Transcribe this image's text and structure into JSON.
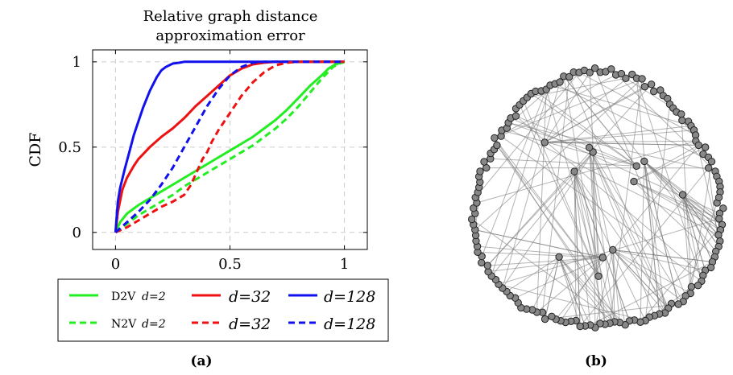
{
  "chart_data": [
    {
      "type": "line",
      "title": "Relative graph distance approximation error",
      "title_lines": [
        "Relative graph distance",
        "approximation error"
      ],
      "xlabel": "",
      "ylabel": "CDF",
      "xlim": [
        -0.1,
        1.1
      ],
      "ylim": [
        -0.1,
        1.07
      ],
      "xticks": [
        0,
        0.5,
        1
      ],
      "xtick_labels": [
        "0",
        "0.5",
        "1"
      ],
      "yticks": [
        0,
        0.5,
        1
      ],
      "ytick_labels": [
        "0",
        "0.5",
        "1"
      ],
      "grid": true,
      "legend_position": "below",
      "legend": {
        "row_labels": [
          "D2V",
          "N2V"
        ],
        "dims": [
          "d=2",
          "d=32",
          "d=128"
        ]
      },
      "series": [
        {
          "name": "D2V d=2",
          "color": "#22ee22",
          "dash": "solid",
          "x": [
            0,
            0.02,
            0.05,
            0.1,
            0.15,
            0.2,
            0.25,
            0.3,
            0.35,
            0.4,
            0.45,
            0.5,
            0.55,
            0.6,
            0.65,
            0.7,
            0.75,
            0.8,
            0.85,
            0.9,
            0.93,
            0.96,
            1.0
          ],
          "y": [
            0,
            0.06,
            0.11,
            0.16,
            0.2,
            0.24,
            0.28,
            0.32,
            0.36,
            0.4,
            0.44,
            0.48,
            0.52,
            0.56,
            0.61,
            0.66,
            0.72,
            0.79,
            0.86,
            0.92,
            0.96,
            0.985,
            1.0
          ]
        },
        {
          "name": "D2V d=32",
          "color": "#ee1111",
          "dash": "solid",
          "x": [
            0,
            0.01,
            0.03,
            0.05,
            0.08,
            0.1,
            0.15,
            0.2,
            0.25,
            0.3,
            0.35,
            0.4,
            0.45,
            0.5,
            0.55,
            0.6,
            0.65,
            0.7,
            0.8,
            0.9,
            1.0
          ],
          "y": [
            0,
            0.12,
            0.25,
            0.32,
            0.39,
            0.43,
            0.5,
            0.56,
            0.61,
            0.67,
            0.74,
            0.8,
            0.86,
            0.92,
            0.96,
            0.985,
            0.995,
            1.0,
            1.0,
            1.0,
            1.0
          ]
        },
        {
          "name": "D2V d=128",
          "color": "#1111ee",
          "dash": "solid",
          "x": [
            0,
            0.01,
            0.02,
            0.04,
            0.06,
            0.08,
            0.1,
            0.12,
            0.15,
            0.18,
            0.2,
            0.22,
            0.25,
            0.28,
            0.3,
            0.35,
            0.4,
            0.5,
            0.7,
            1.0
          ],
          "y": [
            0,
            0.18,
            0.26,
            0.37,
            0.47,
            0.57,
            0.65,
            0.73,
            0.83,
            0.91,
            0.95,
            0.97,
            0.99,
            0.995,
            1.0,
            1.0,
            1.0,
            1.0,
            1.0,
            1.0
          ]
        },
        {
          "name": "N2V d=2",
          "color": "#22ee22",
          "dash": "dashed",
          "x": [
            0,
            0.05,
            0.1,
            0.15,
            0.2,
            0.25,
            0.3,
            0.35,
            0.4,
            0.45,
            0.5,
            0.55,
            0.6,
            0.65,
            0.7,
            0.75,
            0.8,
            0.85,
            0.9,
            0.95,
            0.98,
            1.0
          ],
          "y": [
            0,
            0.05,
            0.1,
            0.14,
            0.18,
            0.22,
            0.27,
            0.31,
            0.35,
            0.39,
            0.43,
            0.47,
            0.51,
            0.56,
            0.61,
            0.67,
            0.74,
            0.82,
            0.9,
            0.97,
            0.99,
            1.0
          ]
        },
        {
          "name": "N2V d=32",
          "color": "#ee1111",
          "dash": "dashed",
          "x": [
            0,
            0.05,
            0.1,
            0.15,
            0.2,
            0.25,
            0.3,
            0.33,
            0.36,
            0.38,
            0.4,
            0.42,
            0.45,
            0.5,
            0.55,
            0.6,
            0.65,
            0.7,
            0.75,
            0.8,
            0.9,
            1.0
          ],
          "y": [
            0,
            0.03,
            0.07,
            0.11,
            0.15,
            0.18,
            0.22,
            0.28,
            0.37,
            0.43,
            0.47,
            0.53,
            0.6,
            0.7,
            0.8,
            0.88,
            0.94,
            0.98,
            0.995,
            1.0,
            1.0,
            1.0
          ]
        },
        {
          "name": "N2V d=128",
          "color": "#1111ee",
          "dash": "dashed",
          "x": [
            0,
            0.05,
            0.1,
            0.15,
            0.2,
            0.25,
            0.3,
            0.35,
            0.4,
            0.45,
            0.5,
            0.55,
            0.6,
            0.65,
            0.7,
            0.8,
            1.0
          ],
          "y": [
            0,
            0.06,
            0.12,
            0.19,
            0.28,
            0.38,
            0.5,
            0.62,
            0.74,
            0.84,
            0.92,
            0.97,
            0.995,
            1.0,
            1.0,
            1.0,
            1.0
          ]
        }
      ],
      "caption": "(a)"
    },
    {
      "type": "network",
      "node_color": "#888888",
      "edge_color": "#777777",
      "caption": "(b)"
    }
  ]
}
